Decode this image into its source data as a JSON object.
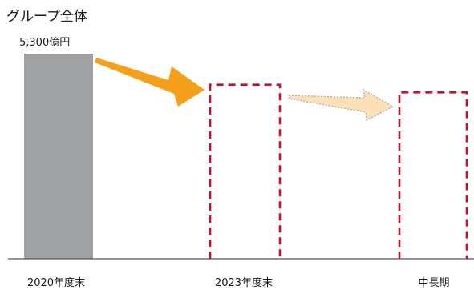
{
  "chart_data": {
    "type": "bar",
    "title": "グループ全体",
    "categories": [
      "2020年度末",
      "2023年度末",
      "中長期"
    ],
    "values": [
      5300,
      4500,
      4300
    ],
    "value_unit": "億円",
    "ylim": [
      0,
      5300
    ],
    "grid": false,
    "legend": "none",
    "data_labels": [
      {
        "category": "2020年度末",
        "text": "5,300億円"
      }
    ],
    "bar_styles": [
      "solid",
      "dashed-outline",
      "dashed-outline"
    ],
    "arrows": [
      {
        "from": "2020年度末",
        "to": "2023年度末",
        "style": "solid"
      },
      {
        "from": "2023年度末",
        "to": "中長期",
        "style": "dotted-light"
      }
    ],
    "colors": {
      "solid_bar": "#a0a1a3",
      "dashed_bar": "#c8102e",
      "arrow_solid": "#f5a01a",
      "arrow_light_fill": "#fbe0b8",
      "arrow_light_stroke": "#b0b0b0",
      "baseline": "#555555",
      "text": "#1a1a1a"
    }
  }
}
